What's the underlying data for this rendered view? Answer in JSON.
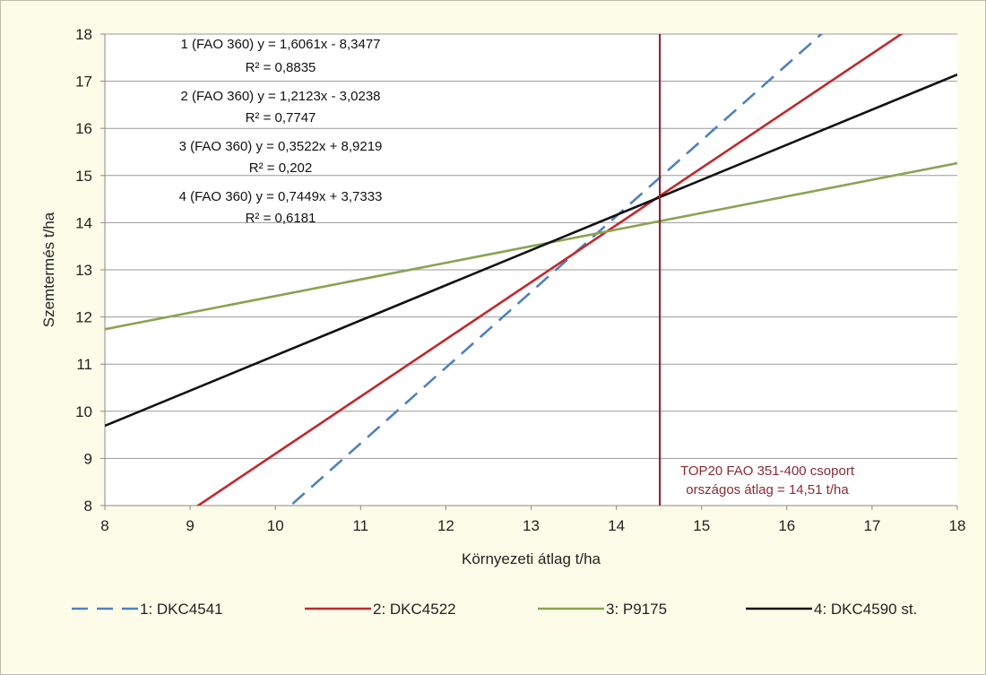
{
  "chart_data": {
    "type": "line",
    "xlabel": "Környezeti átlag t/ha",
    "ylabel": "Szemtermés t/ha",
    "xlim": [
      8,
      18
    ],
    "ylim": [
      8,
      18
    ],
    "x_ticks": [
      "8",
      "9",
      "10",
      "11",
      "12",
      "13",
      "14",
      "15",
      "16",
      "17",
      "18"
    ],
    "y_ticks": [
      "8",
      "9",
      "10",
      "11",
      "12",
      "13",
      "14",
      "15",
      "16",
      "17",
      "18"
    ],
    "grid": "horizontal",
    "legend_position": "bottom",
    "series": [
      {
        "name": "1: DKC4541",
        "slope": 1.6061,
        "intercept": -8.3477,
        "color": "#4f81bd",
        "dash": "dashed",
        "equation_line": "1 (FAO 360) y = 1,6061x - 8,3477",
        "r2_line": "R² = 0,8835"
      },
      {
        "name": "2: DKC4522",
        "slope": 1.2123,
        "intercept": -3.0238,
        "color": "#c0282d",
        "dash": "solid",
        "equation_line": "2 (FAO 360) y = 1,2123x - 3,0238",
        "r2_line": "R² = 0,7747"
      },
      {
        "name": "3: P9175",
        "slope": 0.3522,
        "intercept": 8.9219,
        "color": "#8aa352",
        "dash": "solid",
        "equation_line": "3 (FAO 360) y = 0,3522x + 8,9219",
        "r2_line": "R² = 0,202"
      },
      {
        "name": "4: DKC4590 st.",
        "slope": 0.7449,
        "intercept": 3.7333,
        "color": "#111111",
        "dash": "solid",
        "equation_line": "4 (FAO 360) y = 0,7449x + 3,7333",
        "r2_line": "R² = 0,6181"
      }
    ],
    "reference_line": {
      "x": 14.51,
      "color": "#8b2a33",
      "label_line1": "TOP20 FAO 351-400 csoport",
      "label_line2": "országos átlag = 14,51 t/ha"
    }
  }
}
